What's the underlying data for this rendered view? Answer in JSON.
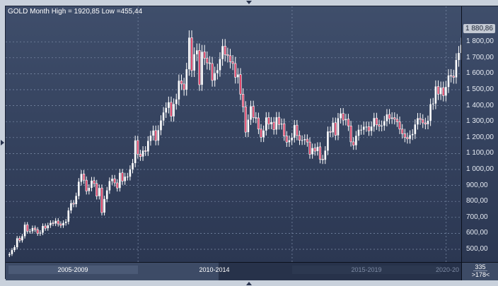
{
  "header": {
    "title": "GOLD Month High = 1920,85 Low =455,44"
  },
  "axis": {
    "last_price": "1 880,86"
  },
  "navigator": {
    "periods": [
      "2005-2009",
      "2010-2014",
      "2015-2019",
      "2020-20"
    ],
    "total": "335",
    "visible": ">178<"
  },
  "colors": {
    "up": "#ffffff",
    "down": "#e0466a",
    "grid": "#8090ac"
  },
  "chart_data": {
    "type": "candlestick",
    "title": "GOLD Month High = 1920,85 Low =455,44",
    "interval": "monthly",
    "start": "2005-10",
    "end": "2020-07",
    "high": 1920.85,
    "low": 455.44,
    "ylim": [
      430,
      1940
    ],
    "yticks": [
      "500,00",
      "600,00",
      "700,00",
      "800,00",
      "900,00",
      "1 000,00",
      "1 100,00",
      "1 200,00",
      "1 300,00",
      "1 400,00",
      "1 500,00",
      "1 600,00",
      "1 700,00",
      "1 800,00"
    ],
    "ytick_values": [
      500,
      600,
      700,
      800,
      900,
      1000,
      1100,
      1200,
      1300,
      1400,
      1500,
      1600,
      1700,
      1800
    ],
    "xgrid": [
      "2010-01",
      "2015-01",
      "2020-01"
    ],
    "grid": true,
    "closes": [
      470,
      495,
      513,
      569,
      556,
      582,
      654,
      613,
      613,
      633,
      623,
      599,
      604,
      646,
      632,
      650,
      665,
      662,
      678,
      659,
      650,
      665,
      673,
      743,
      789,
      783,
      834,
      923,
      972,
      933,
      865,
      885,
      930,
      912,
      833,
      884,
      730,
      815,
      869,
      927,
      942,
      916,
      884,
      979,
      927,
      955,
      955,
      1001,
      1040,
      1182,
      1096,
      1081,
      1118,
      1113,
      1179,
      1212,
      1244,
      1181,
      1246,
      1307,
      1357,
      1386,
      1421,
      1333,
      1410,
      1439,
      1556,
      1536,
      1500,
      1628,
      1826,
      1620,
      1722,
      1746,
      1531,
      1737,
      1697,
      1668,
      1664,
      1558,
      1604,
      1622,
      1692,
      1773,
      1720,
      1713,
      1675,
      1664,
      1578,
      1595,
      1472,
      1393,
      1234,
      1312,
      1396,
      1326,
      1323,
      1253,
      1202,
      1244,
      1326,
      1284,
      1296,
      1250,
      1327,
      1282,
      1287,
      1210,
      1171,
      1183,
      1199,
      1278,
      1213,
      1183,
      1184,
      1190,
      1172,
      1095,
      1134,
      1115,
      1142,
      1065,
      1061,
      1118,
      1238,
      1233,
      1293,
      1214,
      1321,
      1351,
      1309,
      1316,
      1273,
      1173,
      1152,
      1211,
      1249,
      1249,
      1268,
      1268,
      1242,
      1269,
      1322,
      1280,
      1271,
      1275,
      1303,
      1345,
      1318,
      1325,
      1315,
      1299,
      1253,
      1224,
      1201,
      1192,
      1215,
      1222,
      1282,
      1321,
      1313,
      1292,
      1284,
      1305,
      1409,
      1413,
      1520,
      1472,
      1513,
      1463,
      1517,
      1589,
      1585,
      1577,
      1686,
      1730,
      1781,
      1880.86
    ]
  }
}
